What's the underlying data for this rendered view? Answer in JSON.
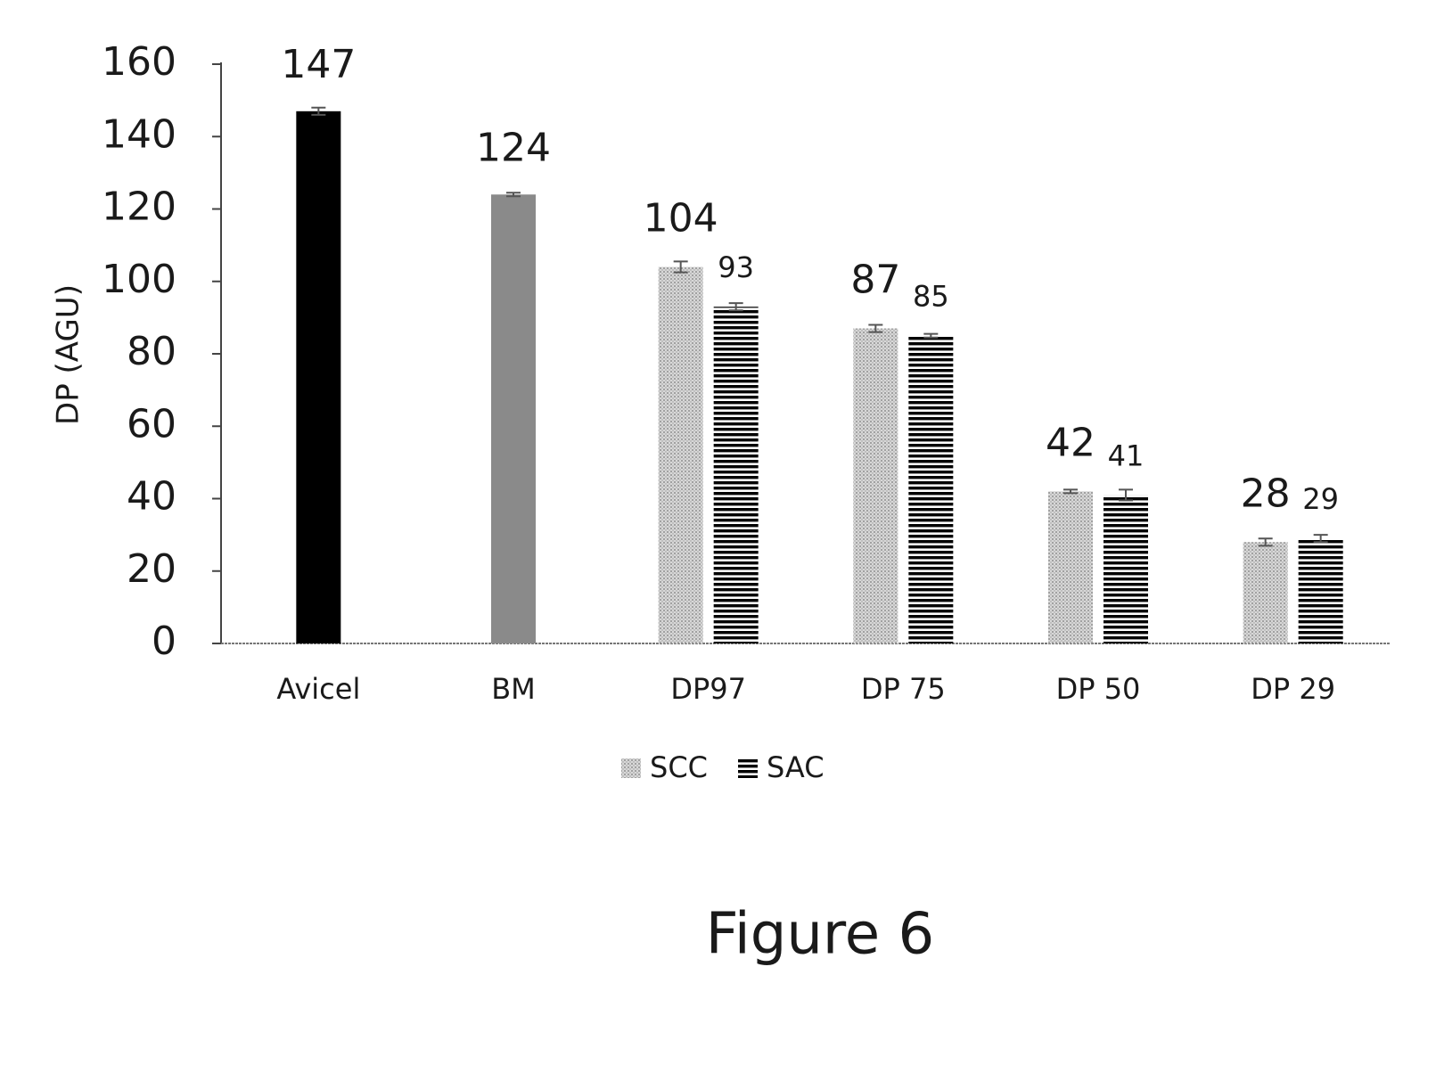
{
  "chart_data": {
    "type": "bar",
    "caption": "Figure 6",
    "y_label": "DP (AGU)",
    "categories": [
      "Avicel",
      "BM",
      "DP97",
      "DP 75",
      "DP 50",
      "DP 29"
    ],
    "single_values": [
      147,
      124,
      null,
      null,
      null,
      null
    ],
    "single_errors": [
      1,
      0.5,
      null,
      null,
      null,
      null
    ],
    "single_colors": [
      "#000000",
      "#8a8a8a",
      null,
      null,
      null,
      null
    ],
    "series": [
      {
        "name": "SCC",
        "color": "#b8b8b8",
        "pattern": "dots",
        "values": [
          null,
          null,
          104,
          87,
          42,
          28
        ],
        "errors": [
          null,
          null,
          1.5,
          1,
          0.5,
          1
        ]
      },
      {
        "name": "SAC",
        "color": "#000000",
        "pattern": "stripes",
        "values": [
          null,
          null,
          93,
          85,
          41,
          29
        ],
        "errors": [
          null,
          null,
          1,
          0.5,
          1.5,
          1
        ]
      }
    ],
    "ylim": [
      0,
      160
    ],
    "yticks": [
      0,
      20,
      40,
      60,
      80,
      100,
      120,
      140,
      160
    ],
    "grid": false
  }
}
